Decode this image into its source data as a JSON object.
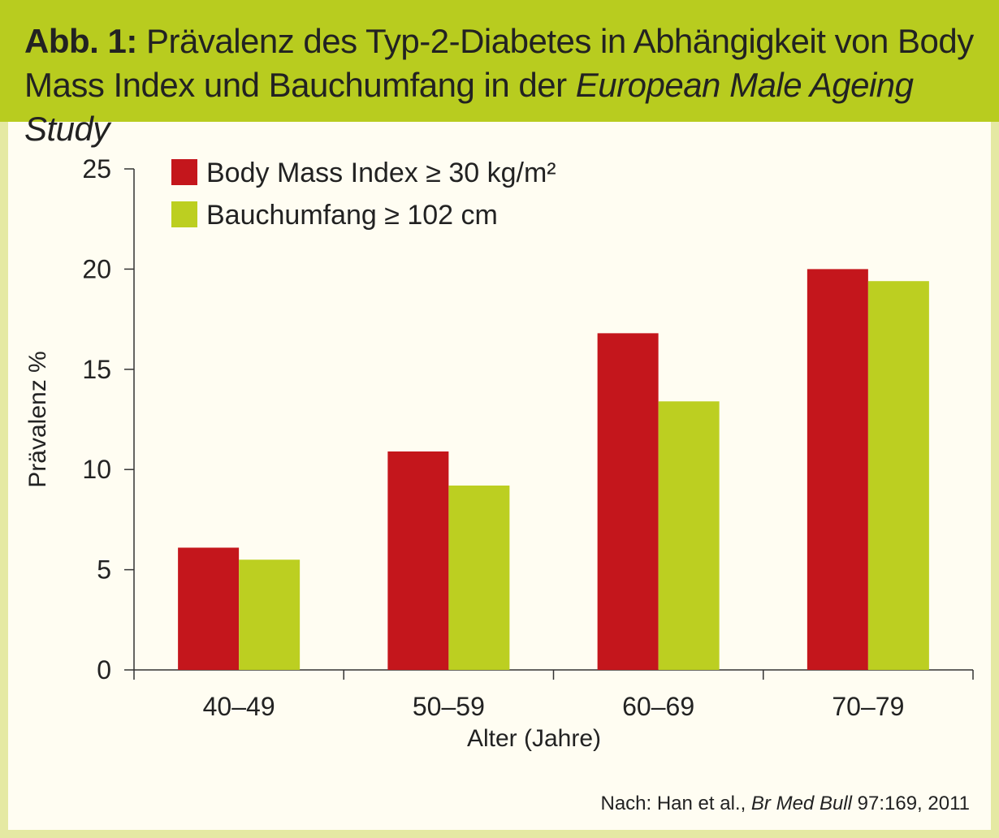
{
  "figure": {
    "label": "Abb. 1:",
    "title_part1": "Prävalenz des Typ-2-Diabetes in Abhängigkeit von Body Mass Index und Bauchumfang in der",
    "title_italic": "European Male Ageing Study",
    "source_prefix": "Nach: Han et al.,",
    "source_italic": "Br Med Bull",
    "source_suffix": "97:169, 2011"
  },
  "colors": {
    "header_bg": "#b8cc1f",
    "frame_border": "#e5e9a3",
    "series_bmi": "#c4161c",
    "series_waist": "#bccf21"
  },
  "chart_data": {
    "type": "bar",
    "categories": [
      "40–49",
      "50–59",
      "60–69",
      "70–79"
    ],
    "series": [
      {
        "name": "Body Mass Index ≥ 30 kg/m²",
        "values": [
          6.1,
          10.9,
          16.8,
          20.0
        ]
      },
      {
        "name": "Bauchumfang ≥ 102 cm",
        "values": [
          5.5,
          9.2,
          13.4,
          19.4
        ]
      }
    ],
    "xlabel": "Alter (Jahre)",
    "ylabel": "Prävalenz %",
    "ylim": [
      0,
      25
    ],
    "yticks": [
      0,
      5,
      10,
      15,
      20,
      25
    ],
    "grid": false,
    "legend": "top-left"
  }
}
